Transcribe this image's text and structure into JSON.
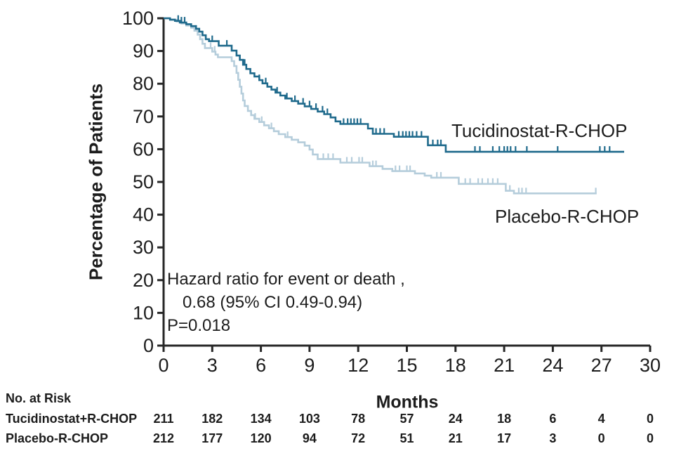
{
  "colors": {
    "tucidinostat": "#1f6a8c",
    "placebo": "#b5cddb",
    "axis": "#262626",
    "text": "#1c1c1c",
    "background": "#ffffff"
  },
  "chart_data": {
    "type": "line",
    "subtype": "kaplan_meier_step",
    "title": "",
    "xlabel": "Months",
    "ylabel": "Percentage of Patients",
    "xlim": [
      0,
      30
    ],
    "ylim": [
      0,
      100
    ],
    "xticks": [
      0,
      3,
      6,
      9,
      12,
      15,
      18,
      21,
      24,
      27,
      30
    ],
    "yticks": [
      0,
      10,
      20,
      30,
      40,
      50,
      60,
      70,
      80,
      90,
      100
    ],
    "grid": false,
    "legend_position": "labels-on-plot",
    "annotation": {
      "line1": "Hazard ratio for event or death ,",
      "line2": "0.68 (95% CI 0.49-0.94)",
      "line3": "P=0.018"
    },
    "series": [
      {
        "id": "tucidinostat",
        "name": "Tucidinostat-R-CHOP",
        "color": "#1f6a8c",
        "end_month": 28.4,
        "steps": [
          [
            0,
            100
          ],
          [
            0.4,
            99.6
          ],
          [
            0.7,
            99.2
          ],
          [
            1.0,
            98.7
          ],
          [
            1.4,
            98.2
          ],
          [
            1.7,
            97.6
          ],
          [
            2.0,
            96.8
          ],
          [
            2.2,
            95.9
          ],
          [
            2.4,
            94.8
          ],
          [
            2.6,
            93.6
          ],
          [
            2.8,
            93.0
          ],
          [
            3.4,
            91.6
          ],
          [
            4.2,
            90.1
          ],
          [
            4.5,
            88.6
          ],
          [
            4.7,
            87.3
          ],
          [
            4.9,
            85.8
          ],
          [
            5.1,
            84.5
          ],
          [
            5.35,
            83.2
          ],
          [
            5.6,
            82.2
          ],
          [
            5.9,
            81.1
          ],
          [
            6.1,
            80.1
          ],
          [
            6.4,
            79.1
          ],
          [
            6.65,
            78.2
          ],
          [
            6.9,
            77.3
          ],
          [
            7.2,
            76.4
          ],
          [
            7.5,
            75.5
          ],
          [
            7.9,
            74.7
          ],
          [
            8.3,
            73.9
          ],
          [
            8.7,
            73.1
          ],
          [
            9.1,
            72.3
          ],
          [
            9.5,
            71.5
          ],
          [
            9.9,
            70.7
          ],
          [
            10.3,
            69.7
          ],
          [
            10.6,
            68.5
          ],
          [
            10.9,
            67.7
          ],
          [
            12.6,
            66.3
          ],
          [
            12.9,
            64.7
          ],
          [
            14.2,
            63.8
          ],
          [
            16.3,
            61.2
          ],
          [
            17.4,
            59.2
          ]
        ],
        "censor_months": [
          0.9,
          1.1,
          1.3,
          3.0,
          3.9,
          5.0,
          5.9,
          6.3,
          7.0,
          7.6,
          8.1,
          8.6,
          9.0,
          9.4,
          9.8,
          10.1,
          11.1,
          11.35,
          11.55,
          11.75,
          11.95,
          12.15,
          13.1,
          13.35,
          13.6,
          14.5,
          14.75,
          14.95,
          15.15,
          15.35,
          15.6,
          15.9,
          16.6,
          16.9,
          17.1,
          19.2,
          19.5,
          20.3,
          20.7,
          21.0,
          21.2,
          21.4,
          21.7,
          22.4,
          24.3,
          26.9,
          27.2,
          27.5
        ]
      },
      {
        "id": "placebo",
        "name": "Placebo-R-CHOP",
        "color": "#b5cddb",
        "end_month": 26.7,
        "steps": [
          [
            0,
            100
          ],
          [
            0.4,
            99.5
          ],
          [
            0.8,
            99.0
          ],
          [
            1.1,
            98.4
          ],
          [
            1.4,
            97.8
          ],
          [
            1.7,
            97.1
          ],
          [
            1.9,
            96.2
          ],
          [
            2.1,
            95.0
          ],
          [
            2.25,
            93.6
          ],
          [
            2.4,
            92.2
          ],
          [
            2.55,
            90.9
          ],
          [
            3.0,
            89.8
          ],
          [
            3.2,
            88.9
          ],
          [
            3.35,
            88.1
          ],
          [
            4.2,
            86.9
          ],
          [
            4.35,
            85.4
          ],
          [
            4.5,
            83.3
          ],
          [
            4.6,
            81.2
          ],
          [
            4.7,
            79.1
          ],
          [
            4.8,
            77.0
          ],
          [
            4.9,
            74.9
          ],
          [
            5.0,
            73.2
          ],
          [
            5.2,
            71.7
          ],
          [
            5.4,
            70.4
          ],
          [
            5.6,
            69.3
          ],
          [
            5.9,
            68.3
          ],
          [
            6.2,
            67.3
          ],
          [
            6.5,
            66.4
          ],
          [
            6.8,
            65.5
          ],
          [
            7.1,
            64.6
          ],
          [
            7.5,
            63.7
          ],
          [
            7.9,
            62.9
          ],
          [
            8.3,
            62.1
          ],
          [
            8.7,
            61.1
          ],
          [
            9.0,
            59.9
          ],
          [
            9.2,
            58.4
          ],
          [
            9.5,
            57.0
          ],
          [
            10.9,
            55.9
          ],
          [
            12.7,
            54.8
          ],
          [
            13.5,
            54.0
          ],
          [
            14.1,
            53.3
          ],
          [
            15.5,
            52.6
          ],
          [
            16.1,
            51.9
          ],
          [
            16.5,
            51.3
          ],
          [
            18.2,
            49.4
          ],
          [
            21.1,
            47.3
          ],
          [
            21.6,
            46.5
          ]
        ],
        "censor_months": [
          2.0,
          2.9,
          3.15,
          5.65,
          6.05,
          6.65,
          7.65,
          9.85,
          10.15,
          10.45,
          11.3,
          11.6,
          12.05,
          12.25,
          12.9,
          13.1,
          14.3,
          14.55,
          15.0,
          15.2,
          16.85,
          17.1,
          18.6,
          18.9,
          19.4,
          19.65,
          20.0,
          20.3,
          20.6,
          21.35,
          21.9,
          22.1,
          22.35,
          26.65
        ]
      }
    ]
  },
  "risk_table": {
    "title": "No. at Risk",
    "rows": [
      {
        "label": "Tucidinostat+R-CHOP",
        "values": [
          211,
          182,
          134,
          103,
          78,
          57,
          24,
          18,
          6,
          4,
          0
        ]
      },
      {
        "label": "Placebo-R-CHOP",
        "values": [
          212,
          177,
          120,
          94,
          72,
          51,
          21,
          17,
          3,
          0,
          0
        ]
      }
    ]
  }
}
